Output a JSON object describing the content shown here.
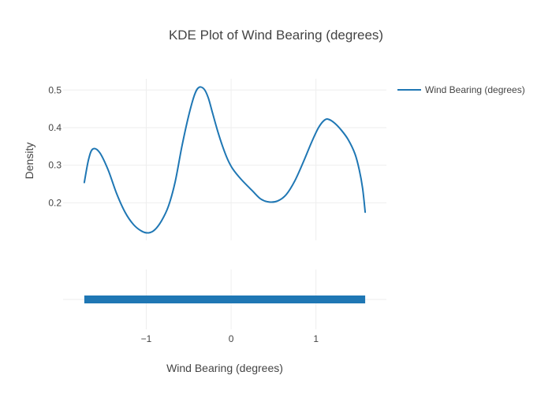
{
  "chart_data": {
    "type": "line",
    "title": "KDE Plot of Wind Bearing (degrees)",
    "xlabel": "Wind Bearing (degrees)",
    "ylabel": "Density",
    "xlim": [
      -1.98,
      1.83
    ],
    "ylim": [
      0.1,
      0.53
    ],
    "x_ticks": [
      -1,
      0,
      1
    ],
    "x_tick_labels": [
      "−1",
      "0",
      "1"
    ],
    "y_ticks": [
      0.2,
      0.3,
      0.4,
      0.5
    ],
    "y_tick_labels": [
      "0.2",
      "0.3",
      "0.4",
      "0.5"
    ],
    "grid": true,
    "legend_position": "top-right",
    "series": [
      {
        "name": "Wind Bearing (degrees)",
        "color": "#1f77b4",
        "x": [
          -1.73,
          -1.68,
          -1.63,
          -1.55,
          -1.45,
          -1.35,
          -1.25,
          -1.15,
          -1.05,
          -0.97,
          -0.9,
          -0.82,
          -0.74,
          -0.66,
          -0.58,
          -0.5,
          -0.43,
          -0.38,
          -0.32,
          -0.27,
          -0.22,
          -0.16,
          -0.1,
          -0.04,
          0.02,
          0.12,
          0.25,
          0.35,
          0.45,
          0.55,
          0.65,
          0.75,
          0.85,
          0.95,
          1.03,
          1.1,
          1.15,
          1.22,
          1.3,
          1.38,
          1.46,
          1.51,
          1.55,
          1.58
        ],
        "y": [
          0.254,
          0.315,
          0.343,
          0.334,
          0.288,
          0.225,
          0.175,
          0.142,
          0.124,
          0.12,
          0.128,
          0.152,
          0.19,
          0.255,
          0.35,
          0.432,
          0.488,
          0.507,
          0.503,
          0.48,
          0.44,
          0.392,
          0.35,
          0.315,
          0.29,
          0.262,
          0.232,
          0.21,
          0.202,
          0.205,
          0.222,
          0.258,
          0.308,
          0.362,
          0.4,
          0.42,
          0.422,
          0.412,
          0.393,
          0.368,
          0.33,
          0.288,
          0.238,
          0.175
        ]
      }
    ],
    "rug": {
      "color": "#1f77b4",
      "x_min": -1.73,
      "x_max": 1.58
    }
  }
}
